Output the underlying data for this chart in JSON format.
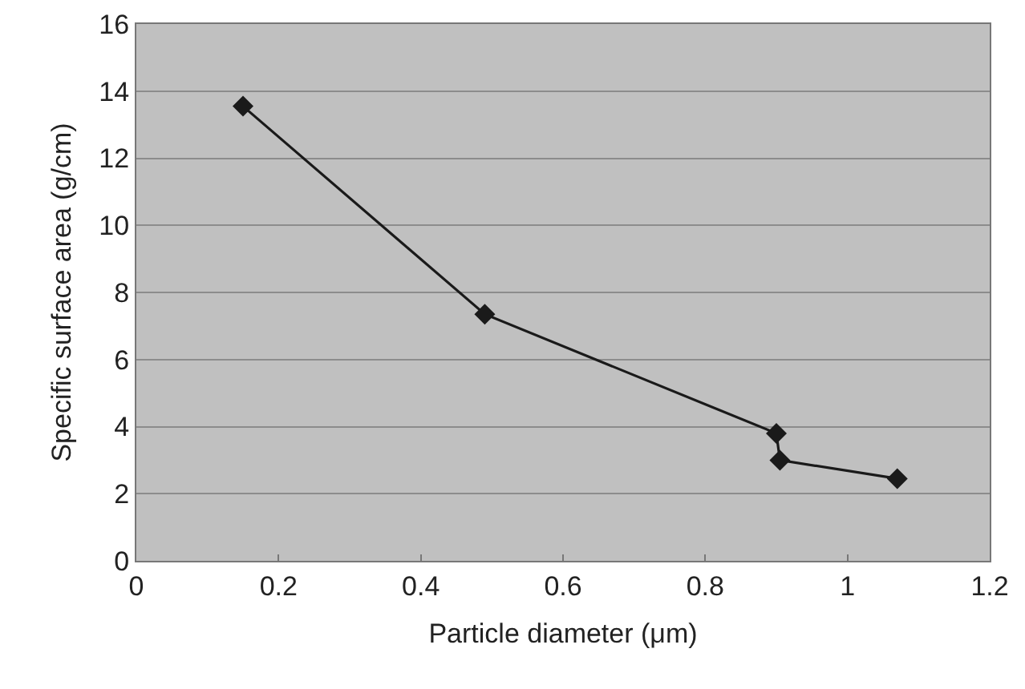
{
  "chart_data": {
    "type": "line",
    "xlabel": "Particle diameter (μm)",
    "ylabel": "Specific surface area (g/cm)",
    "x": [
      0.15,
      0.49,
      0.9,
      0.905,
      1.07
    ],
    "series": [
      {
        "color": "#1a1a1a",
        "values": [
          13.55,
          7.35,
          3.8,
          3.0,
          2.45
        ]
      }
    ],
    "xlim": [
      0,
      1.2
    ],
    "xticks": [
      0,
      0.2,
      0.4,
      0.6,
      0.8,
      1,
      1.2
    ],
    "ylim": [
      0,
      16
    ],
    "yticks": [
      0,
      2,
      4,
      6,
      8,
      10,
      12,
      14,
      16
    ],
    "grid": "y",
    "marker": "diamond",
    "line_style": "solid"
  }
}
